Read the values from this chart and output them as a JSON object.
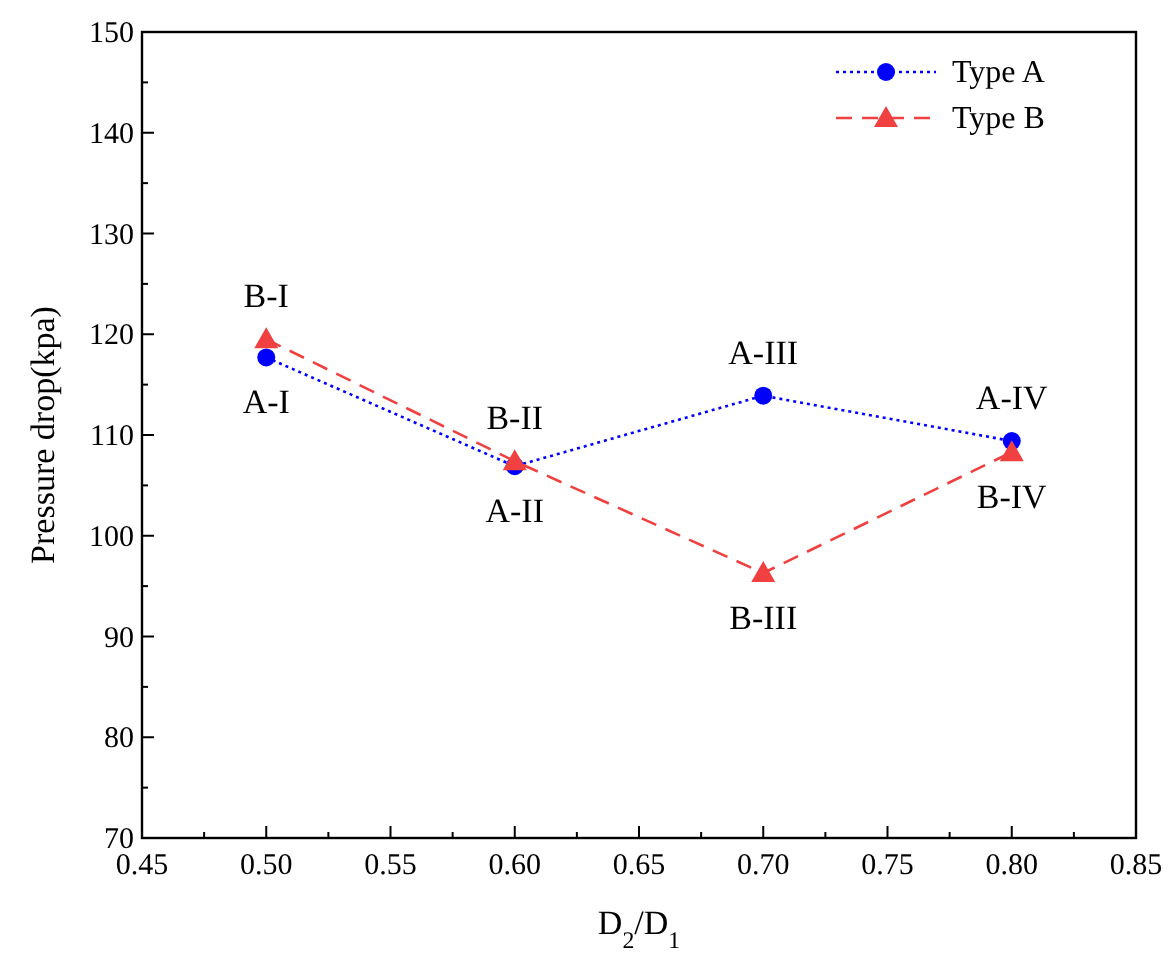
{
  "chart_data": {
    "type": "line",
    "xlabel": "D$_{2}$/D$_{1}$",
    "ylabel": "Pressure drop(kpa)",
    "x": [
      0.5,
      0.6,
      0.7,
      0.8
    ],
    "series": [
      {
        "name": "Type A",
        "color": "#0000ff",
        "values": [
          117.7,
          106.9,
          113.9,
          109.4
        ],
        "marker": "circle",
        "line_style": "dotted"
      },
      {
        "name": "Type B",
        "color": "#f04040",
        "values": [
          119.5,
          107.4,
          96.3,
          108.3
        ],
        "marker": "triangle",
        "line_style": "dashed"
      }
    ],
    "xlim": [
      0.45,
      0.85
    ],
    "xticks": [
      {
        "value": 0.45,
        "label": "0.45"
      },
      {
        "value": 0.475,
        "label": null
      },
      {
        "value": 0.5,
        "label": "0.50"
      },
      {
        "value": 0.525,
        "label": null
      },
      {
        "value": 0.55,
        "label": "0.55"
      },
      {
        "value": 0.575,
        "label": null
      },
      {
        "value": 0.6,
        "label": "0.60"
      },
      {
        "value": 0.625,
        "label": null
      },
      {
        "value": 0.65,
        "label": "0.65"
      },
      {
        "value": 0.675,
        "label": null
      },
      {
        "value": 0.7,
        "label": "0.70"
      },
      {
        "value": 0.725,
        "label": null
      },
      {
        "value": 0.75,
        "label": "0.75"
      },
      {
        "value": 0.775,
        "label": null
      },
      {
        "value": 0.8,
        "label": "0.80"
      },
      {
        "value": 0.825,
        "label": null
      },
      {
        "value": 0.85,
        "label": "0.85"
      }
    ],
    "ylim": [
      70,
      150
    ],
    "yticks": [
      70,
      {
        "value": 75,
        "label": null
      },
      80,
      {
        "value": 85,
        "label": null
      },
      90,
      {
        "value": 95,
        "label": null
      },
      100,
      {
        "value": 105,
        "label": null
      },
      110,
      {
        "value": 115,
        "label": null
      },
      120,
      {
        "value": 125,
        "label": null
      },
      130,
      {
        "value": 135,
        "label": null
      },
      140,
      {
        "value": 145,
        "label": null
      },
      150
    ],
    "grid": false,
    "legend": "top right",
    "annotations": [
      {
        "text": "A-I",
        "x": 0.5,
        "y": 117.7
      },
      {
        "text": "B-I",
        "x": 0.5,
        "y": 119.5
      },
      {
        "text": "A-II",
        "x": 0.6,
        "y": 106.9
      },
      {
        "text": "B-II",
        "x": 0.6,
        "y": 107.4
      },
      {
        "text": "A-III",
        "x": 0.7,
        "y": 113.9
      },
      {
        "text": "B-III",
        "x": 0.7,
        "y": 96.3
      },
      {
        "text": "A-IV",
        "x": 0.8,
        "y": 109.4
      },
      {
        "text": "B-IV",
        "x": 0.8,
        "y": 108.3
      }
    ]
  }
}
